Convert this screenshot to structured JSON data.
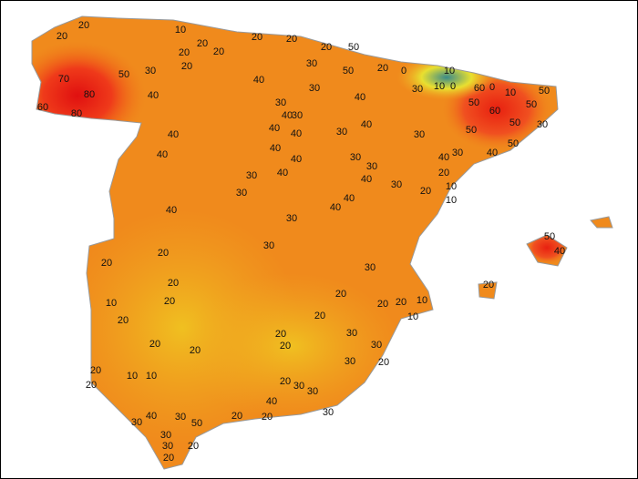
{
  "map": {
    "contour_labels": [
      20,
      10,
      20,
      20,
      20,
      20,
      20,
      20,
      50,
      20,
      30,
      20,
      30,
      50,
      20,
      0,
      10,
      70,
      50,
      60,
      0,
      10,
      50,
      80,
      40,
      40,
      30,
      40,
      30,
      10,
      0,
      60,
      80,
      30,
      40,
      30,
      50,
      60,
      50,
      50,
      30,
      40,
      40,
      40,
      30,
      40,
      30,
      50,
      50,
      40,
      40,
      40,
      40,
      30,
      30,
      40,
      30,
      40,
      30,
      40,
      30,
      20,
      20,
      10,
      30,
      40,
      10,
      40,
      40,
      30,
      50,
      40,
      20,
      30,
      20,
      30,
      20,
      20,
      10,
      20,
      20,
      20,
      10,
      20,
      10,
      20,
      20,
      30,
      20,
      20,
      20,
      20,
      30,
      30,
      20,
      20,
      10,
      10,
      20,
      20,
      30,
      30,
      40,
      30,
      20,
      20,
      40,
      30,
      50,
      30,
      30,
      30,
      20,
      20
    ]
  }
}
